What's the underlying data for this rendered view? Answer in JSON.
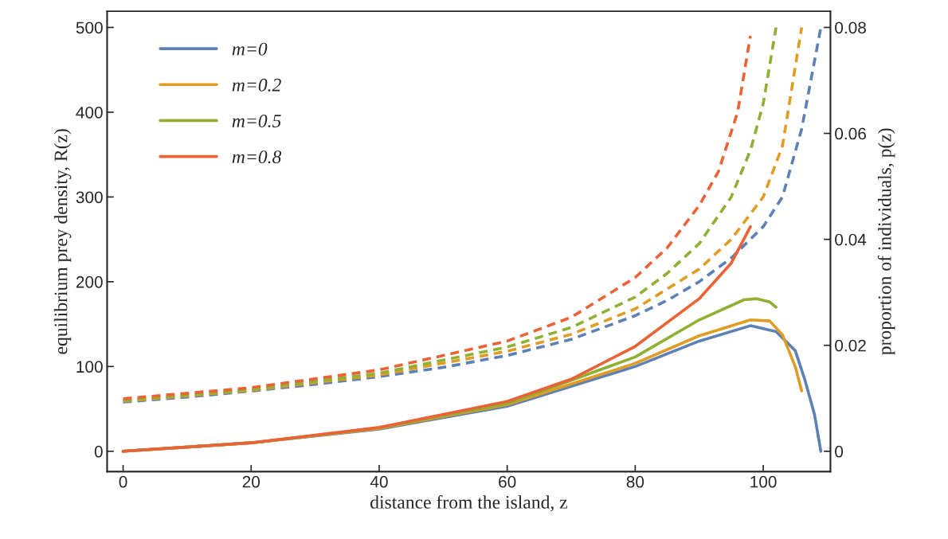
{
  "chart_data": {
    "type": "line",
    "xlabel": "distance from the island, z",
    "ylabel": "equilibrium prey density, R(z)",
    "y2label": "proportion of individuals, p(z)",
    "xlim": [
      -2.5,
      110.5
    ],
    "xticks": [
      0,
      20,
      40,
      60,
      80,
      100
    ],
    "ylim": [
      -24,
      519
    ],
    "yticks": [
      0,
      100,
      200,
      300,
      400,
      500
    ],
    "y2lim": [
      -0.00384,
      0.08304
    ],
    "y2ticks": [
      {
        "value": 0,
        "label": "0"
      },
      0.02,
      0.04,
      0.06,
      0.08
    ],
    "grid": false,
    "legend": "top left",
    "marker": "none",
    "series": [
      {
        "name": "m=0",
        "color": "#5e81b5",
        "axis": "y2",
        "line_style": "solid",
        "x": [
          0,
          20,
          40,
          60,
          80,
          90,
          98,
          102,
          105,
          106.5,
          108,
          109
        ],
        "values": [
          0,
          0.0016,
          0.0042,
          0.0085,
          0.016,
          0.0208,
          0.0237,
          0.0226,
          0.019,
          0.0135,
          0.007,
          0
        ]
      },
      {
        "name": "m=0.2",
        "color": "#e19c24",
        "axis": "y2",
        "line_style": "solid",
        "x": [
          0,
          20,
          40,
          60,
          80,
          90,
          98,
          101,
          103,
          105,
          106
        ],
        "values": [
          0,
          0.0016,
          0.0043,
          0.0088,
          0.0166,
          0.0218,
          0.0248,
          0.0246,
          0.022,
          0.016,
          0.0114
        ]
      },
      {
        "name": "m=0.5",
        "color": "#8fb032",
        "axis": "y2",
        "line_style": "solid",
        "x": [
          0,
          20,
          40,
          60,
          80,
          90,
          97,
          99,
          101,
          102
        ],
        "values": [
          0,
          0.0016,
          0.0044,
          0.009,
          0.0178,
          0.0248,
          0.0286,
          0.0288,
          0.0282,
          0.0272
        ]
      },
      {
        "name": "m=0.8",
        "color": "#eb6235",
        "axis": "y2",
        "line_style": "solid",
        "x": [
          0,
          20,
          40,
          60,
          70,
          80,
          90,
          95,
          98
        ],
        "values": [
          0,
          0.0016,
          0.0045,
          0.0094,
          0.0136,
          0.0198,
          0.0288,
          0.0355,
          0.0424
        ]
      },
      {
        "color": "#5e81b5",
        "axis": "y",
        "line_style": "dashed",
        "x": [
          0,
          10,
          20,
          30,
          40,
          50,
          60,
          70,
          80,
          85,
          90,
          95,
          100,
          103,
          106,
          109
        ],
        "values": [
          58,
          64,
          71,
          79,
          88,
          99,
          113,
          132,
          160,
          178,
          200,
          228,
          265,
          300,
          380,
          500
        ]
      },
      {
        "color": "#e19c24",
        "axis": "y",
        "line_style": "dashed",
        "x": [
          0,
          20,
          40,
          60,
          70,
          80,
          90,
          95,
          100,
          103,
          106
        ],
        "values": [
          59,
          72,
          90,
          118,
          138,
          168,
          215,
          250,
          300,
          360,
          500
        ]
      },
      {
        "color": "#8fb032",
        "axis": "y",
        "line_style": "dashed",
        "x": [
          0,
          20,
          40,
          60,
          70,
          80,
          85,
          90,
          95,
          98,
          100,
          102
        ],
        "values": [
          60,
          73,
          92,
          123,
          146,
          182,
          210,
          245,
          300,
          355,
          410,
          500
        ]
      },
      {
        "color": "#eb6235",
        "axis": "y",
        "line_style": "dashed",
        "x": [
          0,
          20,
          40,
          60,
          70,
          80,
          85,
          90,
          93,
          96,
          98
        ],
        "values": [
          62,
          75,
          96,
          130,
          158,
          205,
          240,
          290,
          330,
          400,
          490
        ]
      }
    ]
  }
}
